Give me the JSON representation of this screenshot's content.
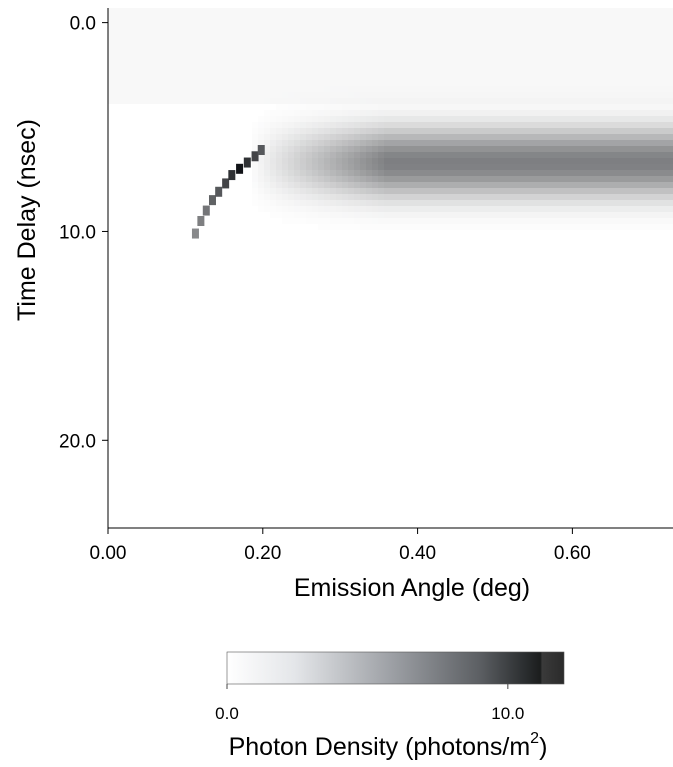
{
  "chart_data": {
    "type": "heatmap",
    "xlabel": "Emission Angle (deg)",
    "ylabel": "Time Delay (nsec)",
    "xlim": [
      0.0,
      0.73
    ],
    "ylim": [
      24.2,
      -0.7
    ],
    "x_ticks": [
      "0.00",
      "0.20",
      "0.40",
      "0.60"
    ],
    "y_ticks": [
      "0.0",
      "10.0",
      "20.0"
    ],
    "colorscale": {
      "title_main": "Photon Density (photons/m",
      "title_sup": "2",
      "title_close": ")",
      "range": [
        0.0,
        12.0
      ],
      "ticks": [
        "0.0",
        "10.0"
      ],
      "low_color": "#ffffff",
      "high_color": "#111111"
    },
    "features": {
      "band": {
        "x_start": 0.2,
        "x_end": 0.73,
        "t_center": 6.7,
        "t_width": 1.6,
        "peak_density": 6.5
      },
      "arc": [
        {
          "x": 0.113,
          "t": 10.1,
          "density": 6.0
        },
        {
          "x": 0.12,
          "t": 9.5,
          "density": 6.5
        },
        {
          "x": 0.127,
          "t": 9.0,
          "density": 7.0
        },
        {
          "x": 0.135,
          "t": 8.5,
          "density": 8.0
        },
        {
          "x": 0.143,
          "t": 8.1,
          "density": 8.5
        },
        {
          "x": 0.152,
          "t": 7.7,
          "density": 9.5
        },
        {
          "x": 0.16,
          "t": 7.3,
          "density": 10.5
        },
        {
          "x": 0.17,
          "t": 7.0,
          "density": 12.0
        },
        {
          "x": 0.18,
          "t": 6.7,
          "density": 10.5
        },
        {
          "x": 0.19,
          "t": 6.4,
          "density": 9.5
        },
        {
          "x": 0.198,
          "t": 6.1,
          "density": 8.5
        }
      ]
    }
  }
}
